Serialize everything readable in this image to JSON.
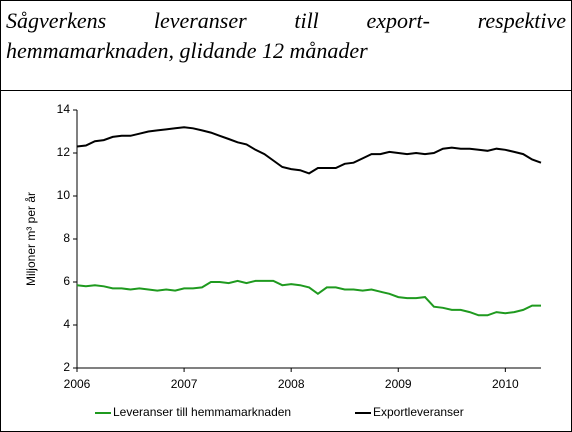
{
  "chart_data": {
    "type": "line",
    "title": "Sågverkens leveranser till export- respektive hemmamarknaden, glidande 12 månader",
    "y_label": "Miljoner m³ per år",
    "x": [
      2006,
      2006.083,
      2006.167,
      2006.25,
      2006.333,
      2006.417,
      2006.5,
      2006.583,
      2006.667,
      2006.75,
      2006.833,
      2006.917,
      2007,
      2007.083,
      2007.167,
      2007.25,
      2007.333,
      2007.417,
      2007.5,
      2007.583,
      2007.667,
      2007.75,
      2007.833,
      2007.917,
      2008,
      2008.083,
      2008.167,
      2008.25,
      2008.333,
      2008.417,
      2008.5,
      2008.583,
      2008.667,
      2008.75,
      2008.833,
      2008.917,
      2009,
      2009.083,
      2009.167,
      2009.25,
      2009.333,
      2009.417,
      2009.5,
      2009.583,
      2009.667,
      2009.75,
      2009.833,
      2009.917,
      2010,
      2010.083,
      2010.167,
      2010.25,
      2010.333
    ],
    "series": [
      {
        "name": "Leveranser till hemmamarknaden",
        "color": "#1f9a1f",
        "values": [
          5.85,
          5.8,
          5.85,
          5.8,
          5.7,
          5.7,
          5.65,
          5.7,
          5.65,
          5.6,
          5.65,
          5.6,
          5.7,
          5.7,
          5.75,
          6.0,
          6.0,
          5.95,
          6.05,
          5.95,
          6.05,
          6.05,
          6.05,
          5.85,
          5.9,
          5.85,
          5.75,
          5.45,
          5.75,
          5.75,
          5.65,
          5.65,
          5.6,
          5.65,
          5.55,
          5.45,
          5.3,
          5.25,
          5.25,
          5.3,
          4.85,
          4.8,
          4.7,
          4.7,
          4.6,
          4.45,
          4.45,
          4.6,
          4.55,
          4.6,
          4.7,
          4.9,
          4.9
        ]
      },
      {
        "name": "Exportleveranser",
        "color": "#000000",
        "values": [
          12.3,
          12.35,
          12.55,
          12.6,
          12.75,
          12.8,
          12.8,
          12.9,
          13.0,
          13.05,
          13.1,
          13.15,
          13.2,
          13.15,
          13.05,
          12.95,
          12.8,
          12.65,
          12.5,
          12.4,
          12.15,
          11.95,
          11.65,
          11.35,
          11.25,
          11.2,
          11.05,
          11.3,
          11.3,
          11.3,
          11.5,
          11.55,
          11.75,
          11.95,
          11.95,
          12.05,
          12.0,
          11.95,
          12.0,
          11.95,
          12.0,
          12.2,
          12.25,
          12.2,
          12.2,
          12.15,
          12.1,
          12.2,
          12.15,
          12.05,
          11.95,
          11.7,
          11.55
        ]
      }
    ],
    "xlim": [
      2006,
      2010.333
    ],
    "xticks": [
      2006,
      2007,
      2008,
      2009,
      2010
    ],
    "ylim": [
      2,
      14
    ],
    "yticks": [
      2,
      4,
      6,
      8,
      10,
      12,
      14
    ],
    "grid": false,
    "legend": "bottom"
  }
}
